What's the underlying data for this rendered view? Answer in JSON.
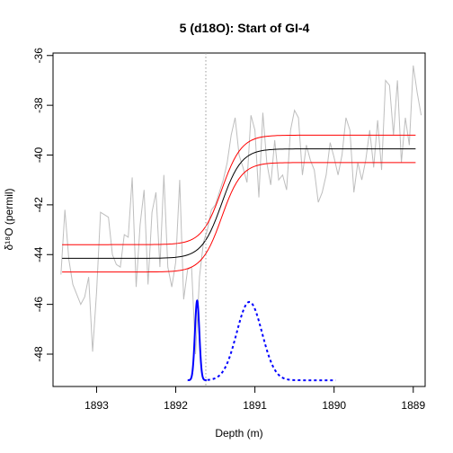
{
  "chart_data": {
    "type": "line",
    "title": "5 (d18O): Start of GI-4",
    "xlabel": "Depth (m)",
    "ylabel": "δ¹⁸O (permil)",
    "xlim": [
      1893.55,
      1888.85
    ],
    "ylim": [
      -49.3,
      -35.9
    ],
    "x_ticks": [
      1893,
      1892,
      1891,
      1890,
      1889
    ],
    "x_tick_labels": [
      "1893",
      "1892",
      "1891",
      "1890",
      "1889"
    ],
    "y_ticks": [
      -36,
      -38,
      -40,
      -42,
      -44,
      -46,
      -48
    ],
    "y_tick_labels": [
      "-36",
      "-38",
      "-40",
      "-42",
      "-44",
      "-46",
      "-48"
    ],
    "grid": false,
    "colors": {
      "raw": "#bebebe",
      "fit": "#000000",
      "band": "#ff0000",
      "density": "#0000ff",
      "marker": "#999999"
    },
    "ramp": {
      "x_start": 1891.82,
      "x_end": 1891.02,
      "y_before": -44.15,
      "y_after": -39.75,
      "band_halfwidth": 0.55
    },
    "marker_x": 1891.62,
    "onset_density": {
      "peak_x": 1891.73,
      "sd": 0.028,
      "peak_y": -45.85,
      "base_y": -49.05,
      "x_from": 1891.85,
      "x_to": 1891.61
    },
    "duration_density": {
      "peak_x": 1891.07,
      "sd": 0.16,
      "peak_y": -45.9,
      "base_y": -49.05,
      "x_from": 1891.6,
      "x_to": 1889.98
    },
    "series": [
      {
        "style": "raw",
        "x": [
          1893.45,
          1893.4,
          1893.35,
          1893.3,
          1893.25,
          1893.2,
          1893.15,
          1893.1,
          1893.05,
          1893.0,
          1892.95,
          1892.9,
          1892.85,
          1892.8,
          1892.75,
          1892.7,
          1892.65,
          1892.6,
          1892.55,
          1892.5,
          1892.45,
          1892.4,
          1892.35,
          1892.3,
          1892.25,
          1892.2,
          1892.15,
          1892.1,
          1892.05,
          1892.0,
          1891.95,
          1891.9,
          1891.85,
          1891.8,
          1891.75,
          1891.7,
          1891.65,
          1891.6,
          1891.55,
          1891.5,
          1891.45,
          1891.4,
          1891.35,
          1891.3,
          1891.25,
          1891.2,
          1891.15,
          1891.1,
          1891.05,
          1891.0,
          1890.95,
          1890.9,
          1890.85,
          1890.8,
          1890.75,
          1890.7,
          1890.65,
          1890.6,
          1890.55,
          1890.5,
          1890.45,
          1890.4,
          1890.35,
          1890.3,
          1890.25,
          1890.2,
          1890.15,
          1890.1,
          1890.05,
          1890.0,
          1889.95,
          1889.9,
          1889.85,
          1889.8,
          1889.75,
          1889.7,
          1889.65,
          1889.6,
          1889.55,
          1889.5,
          1889.45,
          1889.4,
          1889.35,
          1889.3,
          1889.25,
          1889.2,
          1889.15,
          1889.1,
          1889.05,
          1889.0,
          1888.95,
          1888.9
        ],
        "y": [
          -44.8,
          -42.2,
          -44.2,
          -45.2,
          -45.6,
          -46.0,
          -45.7,
          -44.9,
          -47.9,
          -45.5,
          -42.3,
          -42.4,
          -42.5,
          -44.0,
          -44.4,
          -44.5,
          -43.2,
          -43.3,
          -40.9,
          -45.3,
          -42.8,
          -41.4,
          -45.2,
          -42.3,
          -41.5,
          -44.5,
          -40.8,
          -44.5,
          -45.3,
          -44.3,
          -41.0,
          -45.8,
          -44.6,
          -44.5,
          -48.0,
          -44.9,
          -43.5,
          -43.0,
          -42.2,
          -42.0,
          -41.5,
          -41.0,
          -40.3,
          -39.2,
          -38.5,
          -40.0,
          -40.5,
          -41.1,
          -38.4,
          -39.0,
          -41.7,
          -38.3,
          -40.3,
          -41.2,
          -39.4,
          -41.0,
          -40.8,
          -41.4,
          -39.0,
          -38.2,
          -38.5,
          -40.8,
          -39.6,
          -40.2,
          -40.6,
          -41.9,
          -41.5,
          -40.8,
          -39.5,
          -40.1,
          -40.8,
          -40.0,
          -38.5,
          -39.0,
          -41.5,
          -40.3,
          -41.0,
          -40.2,
          -39.0,
          -40.5,
          -38.6,
          -40.6,
          -37.0,
          -37.2,
          -39.2,
          -37.0,
          -40.3,
          -38.5,
          -39.6,
          -36.4,
          -37.5,
          -38.4
        ]
      }
    ]
  }
}
